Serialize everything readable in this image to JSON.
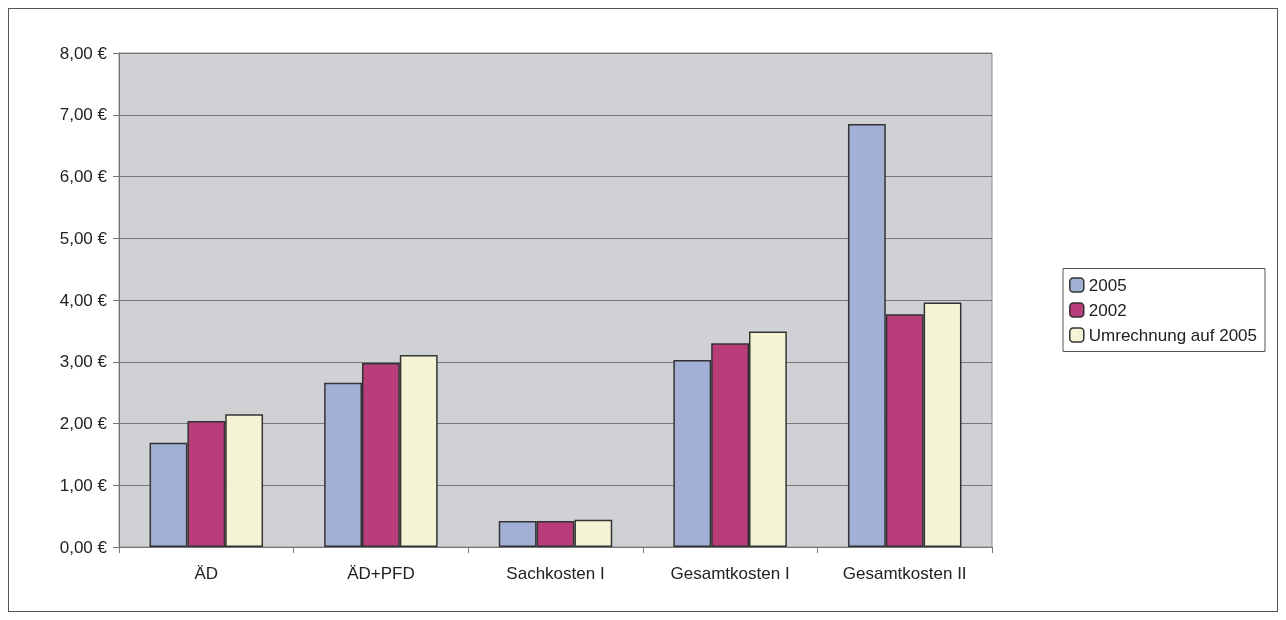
{
  "chart_data": {
    "type": "bar",
    "categories": [
      "ÄD",
      "ÄD+PFD",
      "Sachkosten I",
      "Gesamtkosten I",
      "Gesamtkosten II"
    ],
    "series": [
      {
        "name": "2005",
        "color": "#a2b0d6",
        "values": [
          1.69,
          2.66,
          0.42,
          3.03,
          6.85
        ]
      },
      {
        "name": "2002",
        "color": "#b93d7a",
        "values": [
          2.04,
          2.98,
          0.42,
          3.3,
          3.77
        ]
      },
      {
        "name": "Umrechnung auf 2005",
        "color": "#f5f3d6",
        "values": [
          2.15,
          3.11,
          0.44,
          3.49,
          3.96
        ]
      }
    ],
    "ylim": [
      0,
      8
    ],
    "yticks": [
      {
        "value": 0,
        "label": "0,00 €"
      },
      {
        "value": 1,
        "label": "1,00 €"
      },
      {
        "value": 2,
        "label": "2,00 €"
      },
      {
        "value": 3,
        "label": "3,00 €"
      },
      {
        "value": 4,
        "label": "4,00 €"
      },
      {
        "value": 5,
        "label": "5,00 €"
      },
      {
        "value": 6,
        "label": "6,00 €"
      },
      {
        "value": 7,
        "label": "7,00 €"
      },
      {
        "value": 8,
        "label": "8,00 €"
      }
    ],
    "grid": "y",
    "legend": "right"
  }
}
